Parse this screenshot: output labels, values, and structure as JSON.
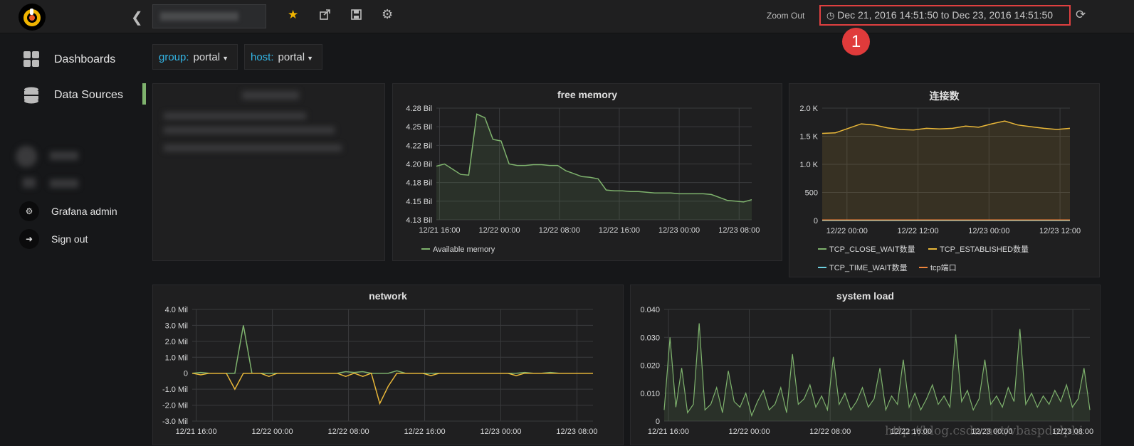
{
  "topbar": {
    "zoom_out_label": "Zoom Out",
    "time_range": "Dec 21, 2016 14:51:50 to Dec 23, 2016 14:51:50",
    "annotation_number": "1",
    "accent_color": "#e04040"
  },
  "sidebar": {
    "items": [
      {
        "label": "Dashboards",
        "icon": "dashboards-icon"
      },
      {
        "label": "Data Sources",
        "icon": "database-icon"
      }
    ],
    "profile_items": [
      {
        "label": "Grafana admin",
        "icon": "gear-icon"
      },
      {
        "label": "Sign out",
        "icon": "sign-out-icon"
      }
    ]
  },
  "variables": [
    {
      "name": "group:",
      "value": "portal"
    },
    {
      "name": "host:",
      "value": "portal"
    }
  ],
  "panels": {
    "free_memory": {
      "title": "free memory",
      "legend": [
        "Available memory"
      ]
    },
    "connections": {
      "title": "连接数",
      "legend": [
        "TCP_CLOSE_WAIT数量",
        "TCP_ESTABLISHED数量",
        "TCP_TIME_WAIT数量",
        "tcp端口"
      ]
    },
    "network": {
      "title": "network"
    },
    "system_load": {
      "title": "system load"
    }
  },
  "watermark": "http://blog.csdn.net/vbaspdelphi",
  "chart_data": [
    {
      "type": "area",
      "title": "free memory",
      "x_ticks": [
        "12/21 16:00",
        "12/22 00:00",
        "12/22 08:00",
        "12/22 16:00",
        "12/23 00:00",
        "12/23 08:00"
      ],
      "y_ticks": [
        "4.28 Bil",
        "4.25 Bil",
        "4.22 Bil",
        "4.20 Bil",
        "4.18 Bil",
        "4.15 Bil",
        "4.13 Bil"
      ],
      "ylim": [
        4.13,
        4.28
      ],
      "series": [
        {
          "name": "Available memory",
          "color": "#7eb26d",
          "values": [
            4.202,
            4.205,
            4.198,
            4.191,
            4.19,
            4.272,
            4.267,
            4.238,
            4.236,
            4.205,
            4.203,
            4.203,
            4.204,
            4.204,
            4.203,
            4.203,
            4.196,
            4.192,
            4.188,
            4.187,
            4.185,
            4.17,
            4.169,
            4.169,
            4.168,
            4.168,
            4.167,
            4.166,
            4.166,
            4.166,
            4.165,
            4.165,
            4.165,
            4.165,
            4.164,
            4.16,
            4.156,
            4.155,
            4.154,
            4.157
          ]
        }
      ]
    },
    {
      "type": "area",
      "title": "连接数",
      "x_ticks": [
        "12/22 00:00",
        "12/22 12:00",
        "12/23 00:00",
        "12/23 12:00"
      ],
      "y_ticks": [
        "2.0 K",
        "1.5 K",
        "1.0 K",
        "500",
        "0"
      ],
      "ylim": [
        0,
        2000
      ],
      "series": [
        {
          "name": "TCP_CLOSE_WAIT数量",
          "color": "#7eb26d",
          "values": [
            0,
            0,
            0,
            0,
            0,
            0,
            0,
            0,
            0,
            0,
            0,
            0,
            0,
            0,
            0,
            0,
            0,
            0,
            0,
            0
          ]
        },
        {
          "name": "TCP_ESTABLISHED数量",
          "color": "#eab839",
          "values": [
            1550,
            1560,
            1640,
            1720,
            1700,
            1650,
            1620,
            1610,
            1640,
            1630,
            1640,
            1680,
            1660,
            1720,
            1770,
            1700,
            1670,
            1640,
            1620,
            1640
          ]
        },
        {
          "name": "TCP_TIME_WAIT数量",
          "color": "#6ed0e0",
          "values": [
            0,
            0,
            0,
            0,
            0,
            0,
            0,
            0,
            0,
            0,
            0,
            0,
            0,
            0,
            0,
            0,
            0,
            0,
            0,
            0
          ]
        },
        {
          "name": "tcp端口",
          "color": "#ef843c",
          "values": [
            10,
            10,
            10,
            10,
            10,
            10,
            10,
            10,
            10,
            10,
            10,
            10,
            10,
            10,
            10,
            10,
            10,
            10,
            10,
            10
          ]
        }
      ]
    },
    {
      "type": "line",
      "title": "network",
      "x_ticks": [
        "12/21 16:00",
        "12/22 00:00",
        "12/22 08:00",
        "12/22 16:00",
        "12/23 00:00",
        "12/23 08:00"
      ],
      "y_ticks": [
        "4.0 Mil",
        "3.0 Mil",
        "2.0 Mil",
        "1.0 Mil",
        "0",
        "-1.0 Mil",
        "-2.0 Mil",
        "-3.0 Mil"
      ],
      "ylim": [
        -3.0,
        4.0
      ],
      "series": [
        {
          "name": "",
          "color": "#7eb26d",
          "values": [
            0,
            0.05,
            0,
            0,
            0,
            0,
            3.0,
            0,
            0,
            0,
            0,
            0,
            0,
            0,
            0,
            0,
            0,
            0,
            0.1,
            0.05,
            0.1,
            0,
            0,
            0,
            0.15,
            0,
            0,
            0,
            0,
            0,
            0,
            0,
            0,
            0,
            0,
            0,
            0,
            0,
            0,
            0.05,
            0,
            0,
            0.05,
            0,
            0,
            0,
            0,
            0
          ]
        },
        {
          "name": "",
          "color": "#eab839",
          "values": [
            0,
            -0.1,
            0,
            0,
            0,
            -1.0,
            0,
            0,
            0,
            -0.2,
            0,
            0,
            0,
            0,
            0,
            0,
            0,
            0,
            -0.2,
            0,
            -0.2,
            0,
            -1.9,
            -0.8,
            0,
            0,
            0,
            0,
            -0.15,
            0,
            0,
            0,
            0,
            0,
            0,
            0,
            0,
            0,
            -0.15,
            0,
            0,
            0,
            0,
            0,
            0,
            0,
            0,
            0
          ]
        }
      ]
    },
    {
      "type": "area",
      "title": "system load",
      "x_ticks": [
        "12/21 16:00",
        "12/22 00:00",
        "12/22 08:00",
        "12/22 16:00",
        "12/23 00:00",
        "12/23 08:00"
      ],
      "y_ticks": [
        "0.040",
        "0.030",
        "0.020",
        "0.010",
        "0"
      ],
      "ylim": [
        0,
        0.04
      ],
      "series": [
        {
          "name": "",
          "color": "#7eb26d",
          "values": [
            0.004,
            0.03,
            0.005,
            0.019,
            0.003,
            0.006,
            0.035,
            0.004,
            0.006,
            0.012,
            0.003,
            0.018,
            0.007,
            0.005,
            0.01,
            0.002,
            0.007,
            0.011,
            0.004,
            0.006,
            0.012,
            0.003,
            0.024,
            0.006,
            0.008,
            0.013,
            0.005,
            0.009,
            0.004,
            0.023,
            0.006,
            0.01,
            0.004,
            0.007,
            0.012,
            0.005,
            0.008,
            0.019,
            0.004,
            0.009,
            0.006,
            0.022,
            0.005,
            0.01,
            0.004,
            0.008,
            0.013,
            0.006,
            0.009,
            0.005,
            0.031,
            0.007,
            0.011,
            0.004,
            0.008,
            0.022,
            0.006,
            0.009,
            0.005,
            0.012,
            0.007,
            0.033,
            0.006,
            0.01,
            0.005,
            0.009,
            0.006,
            0.011,
            0.007,
            0.013,
            0.005,
            0.008,
            0.019,
            0.004
          ]
        }
      ]
    }
  ]
}
